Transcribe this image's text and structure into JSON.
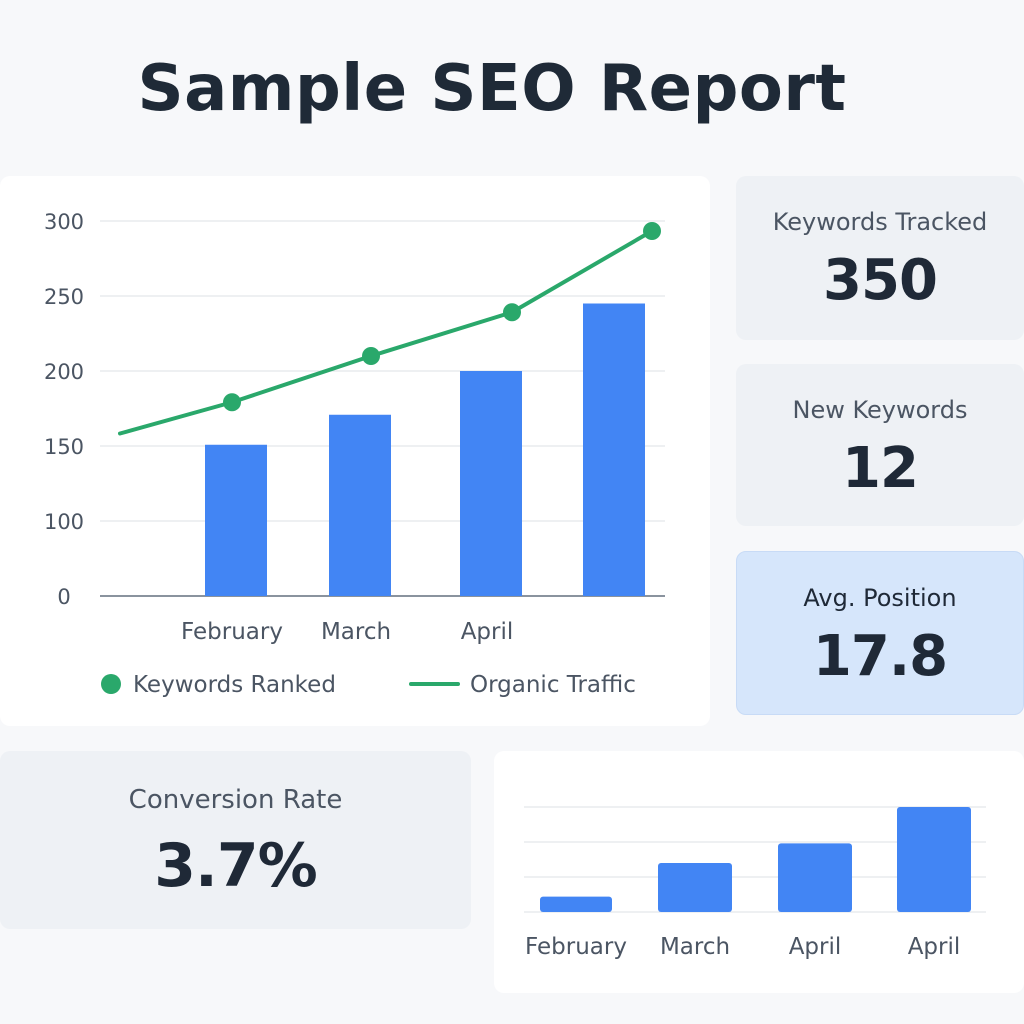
{
  "report": {
    "title": "Sample SEO Report"
  },
  "colors": {
    "bar": "#4285f4",
    "line": "#2aa86b",
    "grid": "#e3e6ea",
    "axis": "#8a939e",
    "text": "#4b5563"
  },
  "kpis": {
    "keywords_tracked": {
      "label": "Keywords Tracked",
      "value": "350"
    },
    "new_keywords": {
      "label": "New Keywords",
      "value": "12"
    },
    "avg_position": {
      "label": "Avg. Position",
      "value": "17.8"
    },
    "conversion_rate": {
      "label": "Conversion Rate",
      "value": "3.7%"
    }
  },
  "chart_data": [
    {
      "type": "bar",
      "categories": [
        "February",
        "March",
        "April",
        ""
      ],
      "y_ticks": [
        0,
        100,
        150,
        200,
        250,
        300
      ],
      "ylim": [
        0,
        300
      ],
      "series": [
        {
          "name": "Keywords Ranked",
          "type": "bar",
          "values": [
            121,
            145,
            180,
            234
          ]
        },
        {
          "name": "Organic Traffic",
          "type": "line",
          "start_value": 130,
          "values": [
            155,
            192,
            227,
            292
          ]
        }
      ],
      "legend": [
        "Keywords Ranked",
        "Organic Traffic"
      ],
      "legend_position": "bottom",
      "grid": true
    },
    {
      "type": "bar",
      "categories": [
        "February",
        "March",
        "April",
        "April"
      ],
      "values": [
        11,
        35,
        49,
        75
      ],
      "ylim": [
        0,
        75
      ],
      "grid": true
    }
  ]
}
